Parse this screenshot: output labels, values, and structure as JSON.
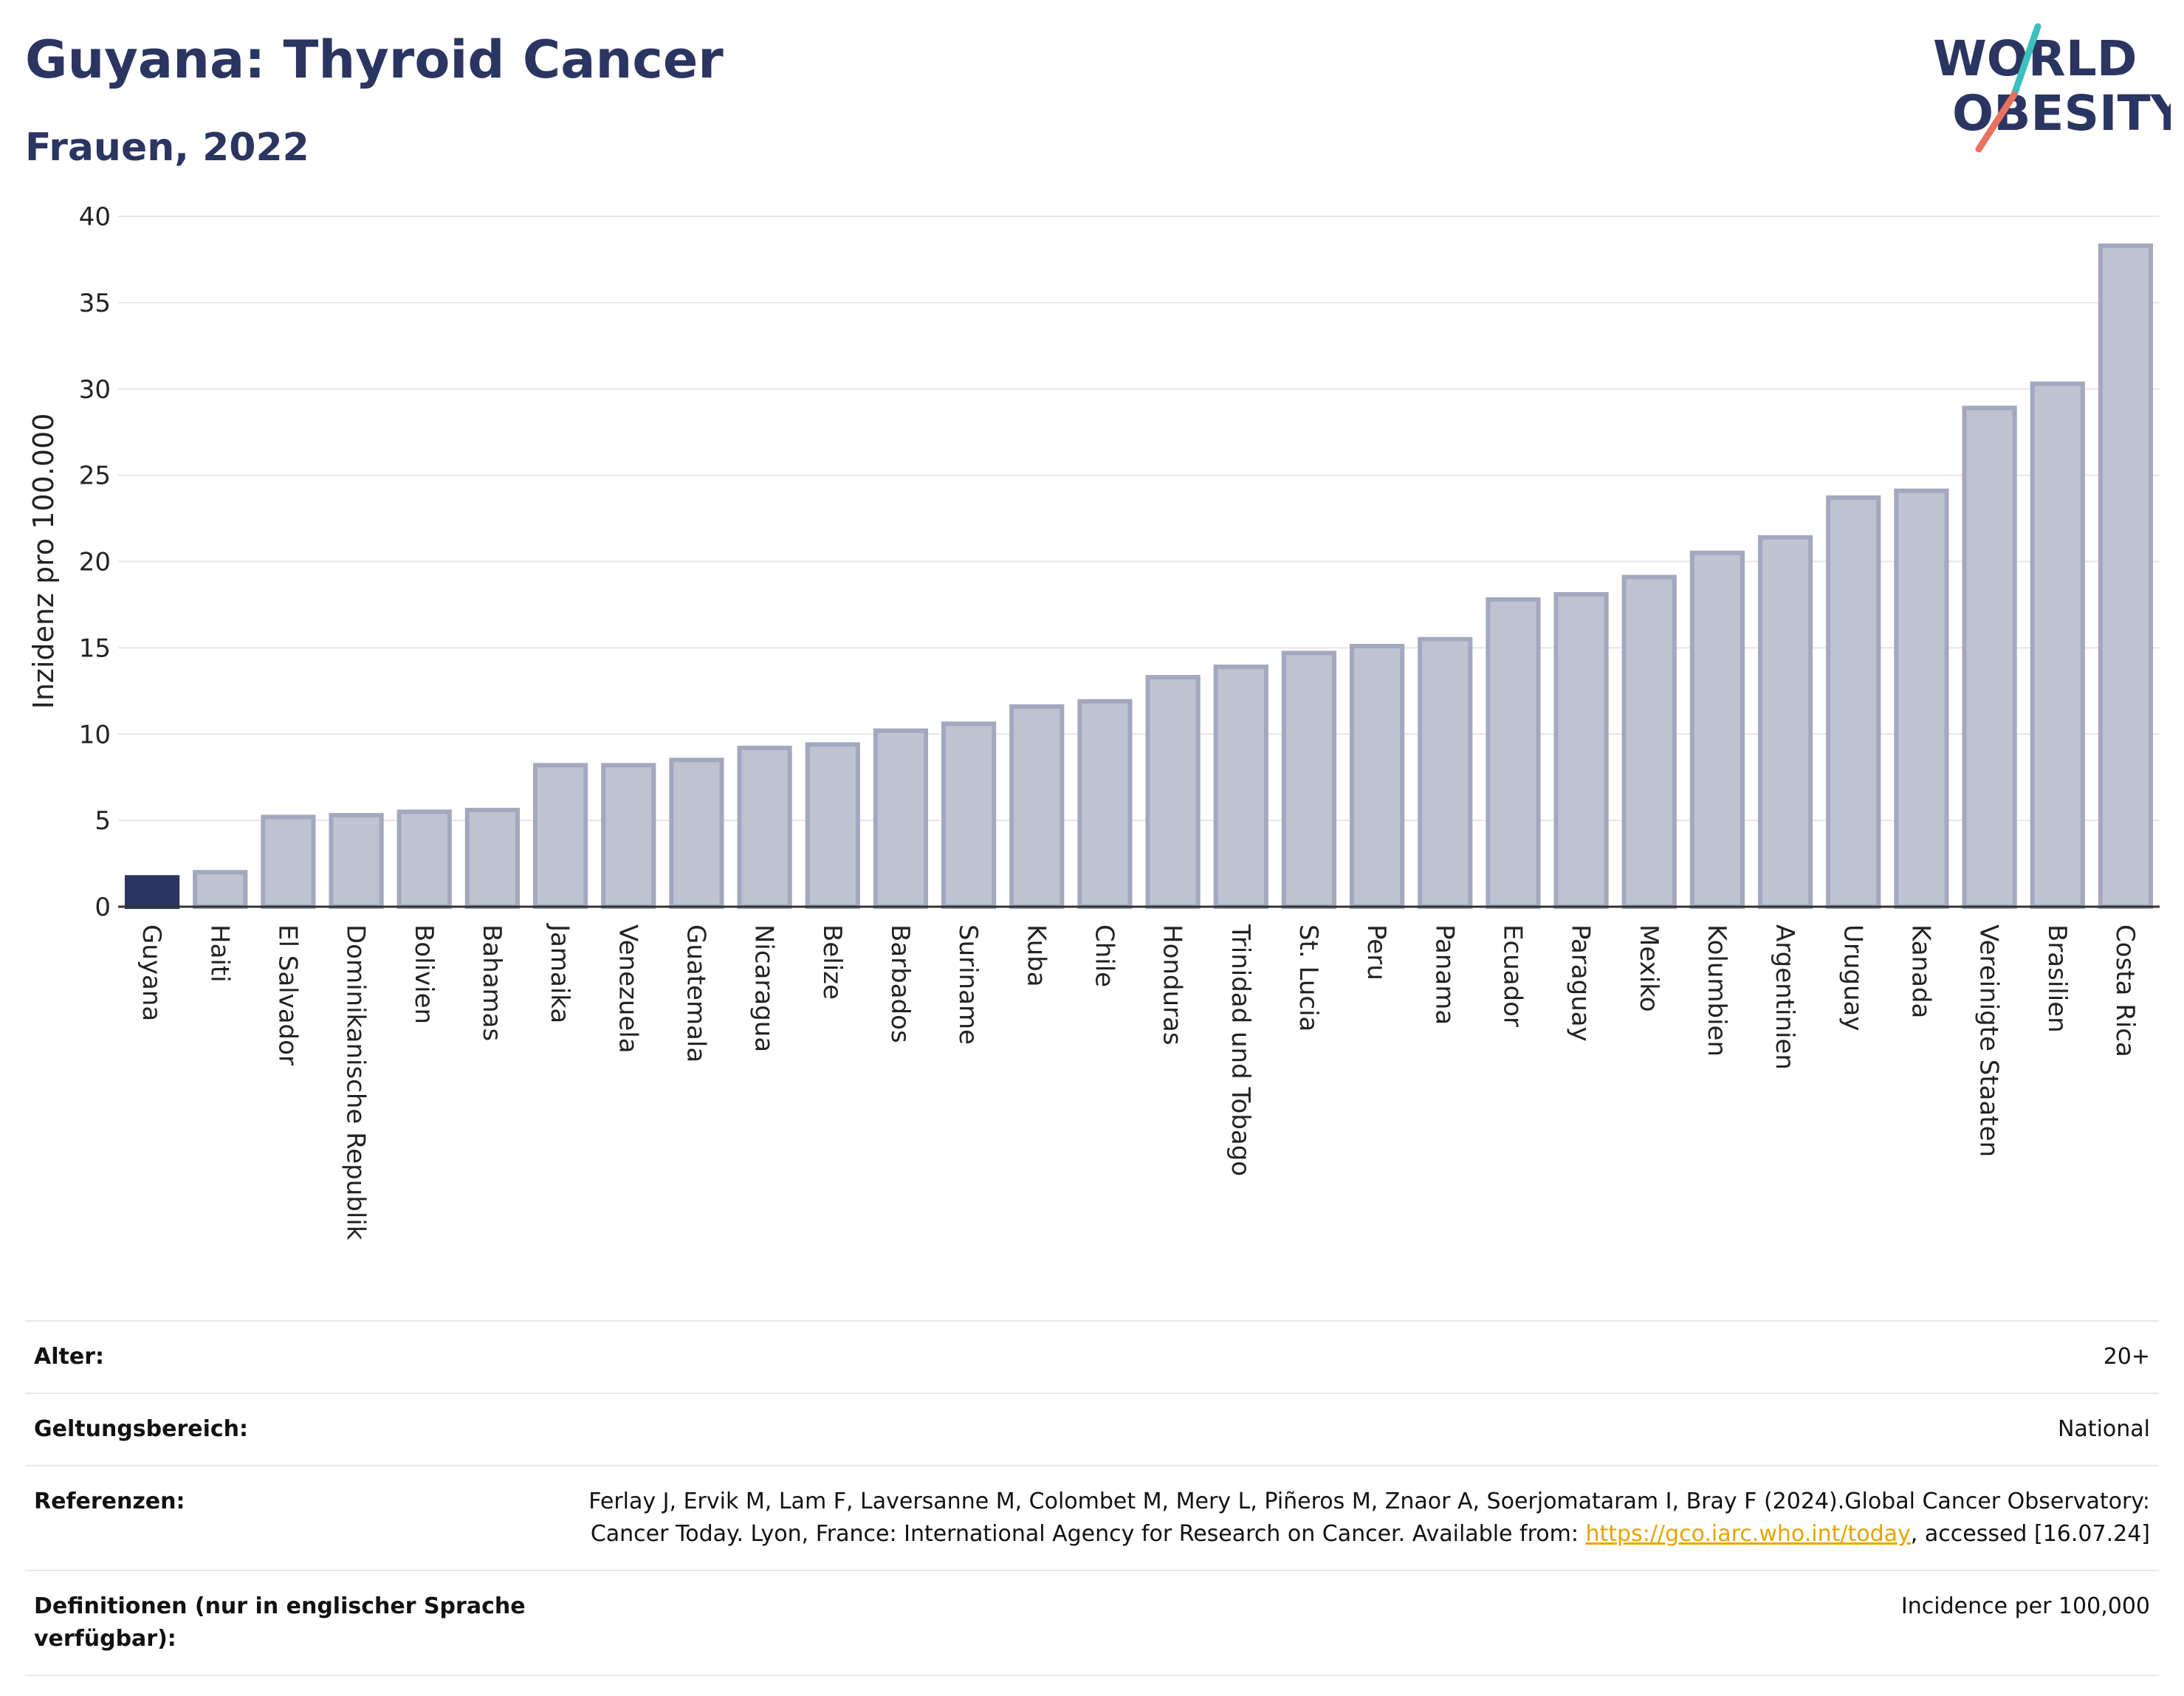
{
  "header": {
    "title": "Guyana: Thyroid Cancer",
    "subtitle": "Frauen, 2022",
    "logo_line1": "WORLD",
    "logo_line2": "OBESITY"
  },
  "colors": {
    "accent": "#2b3562",
    "bar": "#bfc2d1",
    "bar_stroke": "#a3a8be",
    "highlight": "#2b3562",
    "logo_teal": "#3cbfbf",
    "logo_coral": "#e9725f",
    "link": "#e8a400"
  },
  "chart_data": {
    "type": "bar",
    "ylabel": "Inzidenz pro 100.000",
    "xlabel": "",
    "ylim": [
      0,
      40
    ],
    "yticks": [
      0,
      5,
      10,
      15,
      20,
      25,
      30,
      35,
      40
    ],
    "grid": true,
    "highlight": "Guyana",
    "categories": [
      "Guyana",
      "Haiti",
      "El Salvador",
      "Dominikanische Republik",
      "Bolivien",
      "Bahamas",
      "Jamaika",
      "Venezuela",
      "Guatemala",
      "Nicaragua",
      "Belize",
      "Barbados",
      "Suriname",
      "Kuba",
      "Chile",
      "Honduras",
      "Trinidad und Tobago",
      "St. Lucia",
      "Peru",
      "Panama",
      "Ecuador",
      "Paraguay",
      "Mexiko",
      "Kolumbien",
      "Argentinien",
      "Uruguay",
      "Kanada",
      "Vereinigte Staaten",
      "Brasilien",
      "Costa Rica"
    ],
    "values": [
      1.7,
      2.0,
      5.2,
      5.3,
      5.5,
      5.6,
      8.2,
      8.2,
      8.5,
      9.2,
      9.4,
      10.2,
      10.6,
      11.6,
      11.9,
      13.3,
      13.9,
      14.7,
      15.1,
      15.5,
      17.8,
      18.1,
      19.1,
      20.5,
      21.4,
      23.7,
      24.1,
      28.9,
      30.3,
      38.3
    ]
  },
  "meta": {
    "age_label": "Alter:",
    "age_value": "20+",
    "scope_label": "Geltungsbereich:",
    "scope_value": "National",
    "refs_label": "Referenzen:",
    "refs_text_1": "Ferlay J, Ervik M, Lam F, Laversanne M, Colombet M, Mery L, Piñeros M, Znaor A, Soerjomataram I, Bray F (2024).Global Cancer Observatory: Cancer Today. Lyon, France: International Agency for Research on Cancer. Available from: ",
    "refs_link": "https://gco.iarc.who.int/today",
    "refs_text_2": ", accessed [16.07.24]",
    "defs_label": "Definitionen (nur in englischer Sprache verfügbar):",
    "defs_value": "Incidence per 100,000"
  }
}
